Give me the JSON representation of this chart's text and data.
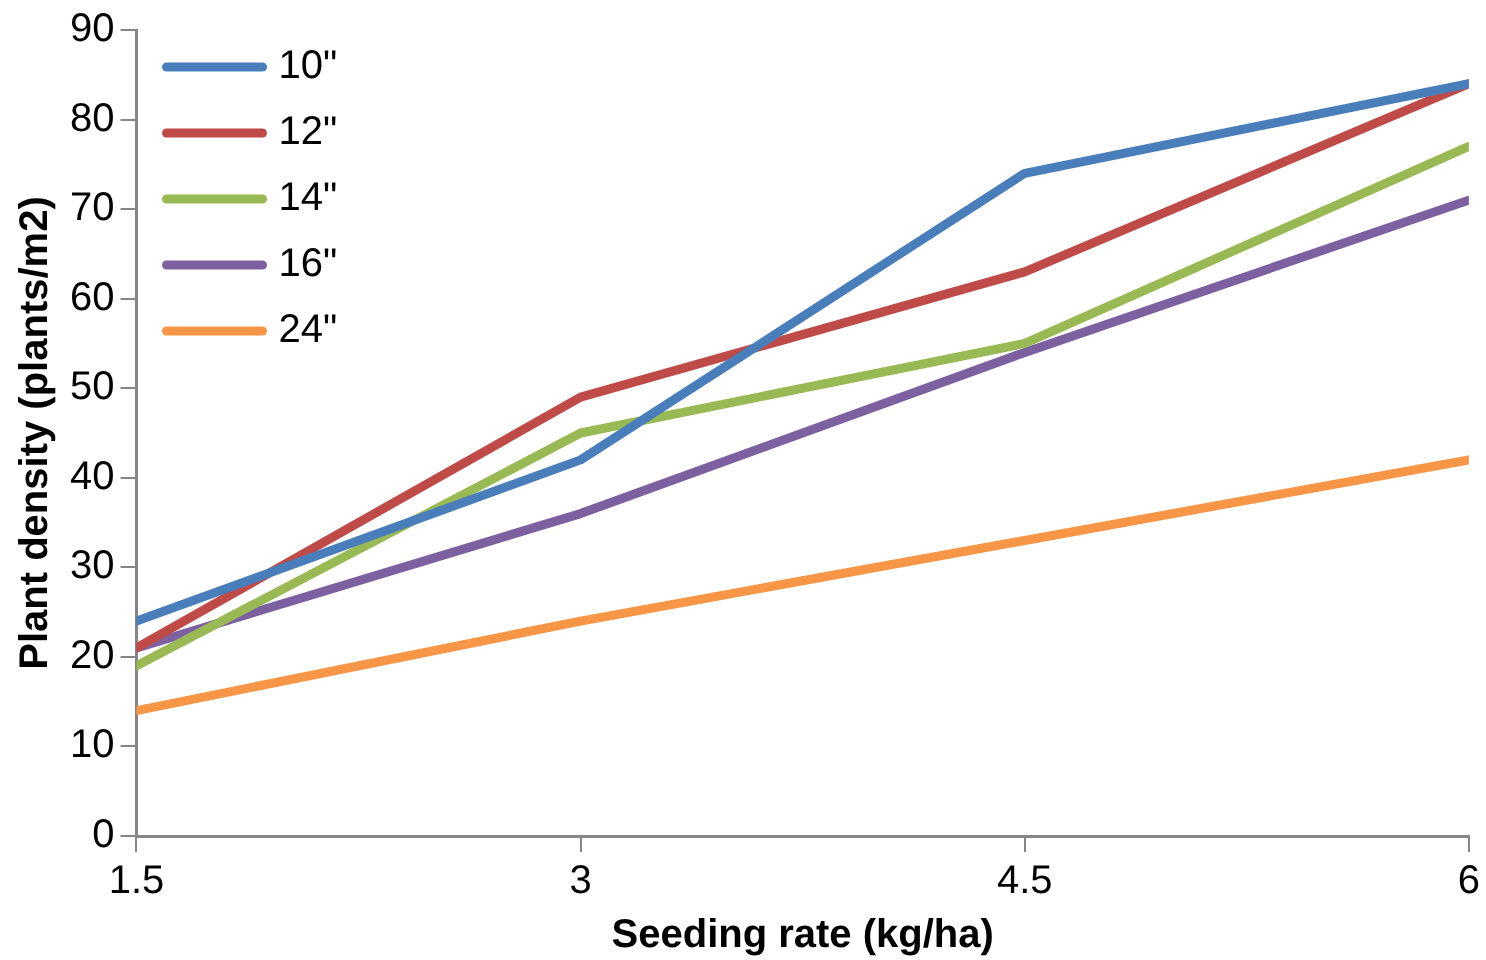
{
  "chart_data": {
    "type": "line",
    "xlabel": "Seeding rate (kg/ha)",
    "ylabel": "Plant density (plants/m2)",
    "x": [
      1.5,
      3,
      4.5,
      6
    ],
    "xlim": [
      1.5,
      6
    ],
    "xticks": [
      1.5,
      3,
      4.5,
      6
    ],
    "ylim": [
      0,
      90
    ],
    "yticks": [
      0,
      10,
      20,
      30,
      40,
      50,
      60,
      70,
      80,
      90
    ],
    "grid": false,
    "legend": "top left",
    "marker": "none",
    "line_style": "solid",
    "series": [
      {
        "name": "10\"",
        "color": "#4a7ebb",
        "values": [
          24,
          42,
          74,
          84
        ]
      },
      {
        "name": "12\"",
        "color": "#be4b48",
        "values": [
          21,
          49,
          63,
          84
        ]
      },
      {
        "name": "14\"",
        "color": "#98b954",
        "values": [
          19,
          45,
          55,
          77
        ]
      },
      {
        "name": "16\"",
        "color": "#7d60a0",
        "values": [
          21,
          36,
          54,
          71
        ]
      },
      {
        "name": "24\"",
        "color": "#f79646",
        "values": [
          14,
          24,
          33,
          42
        ]
      }
    ]
  }
}
